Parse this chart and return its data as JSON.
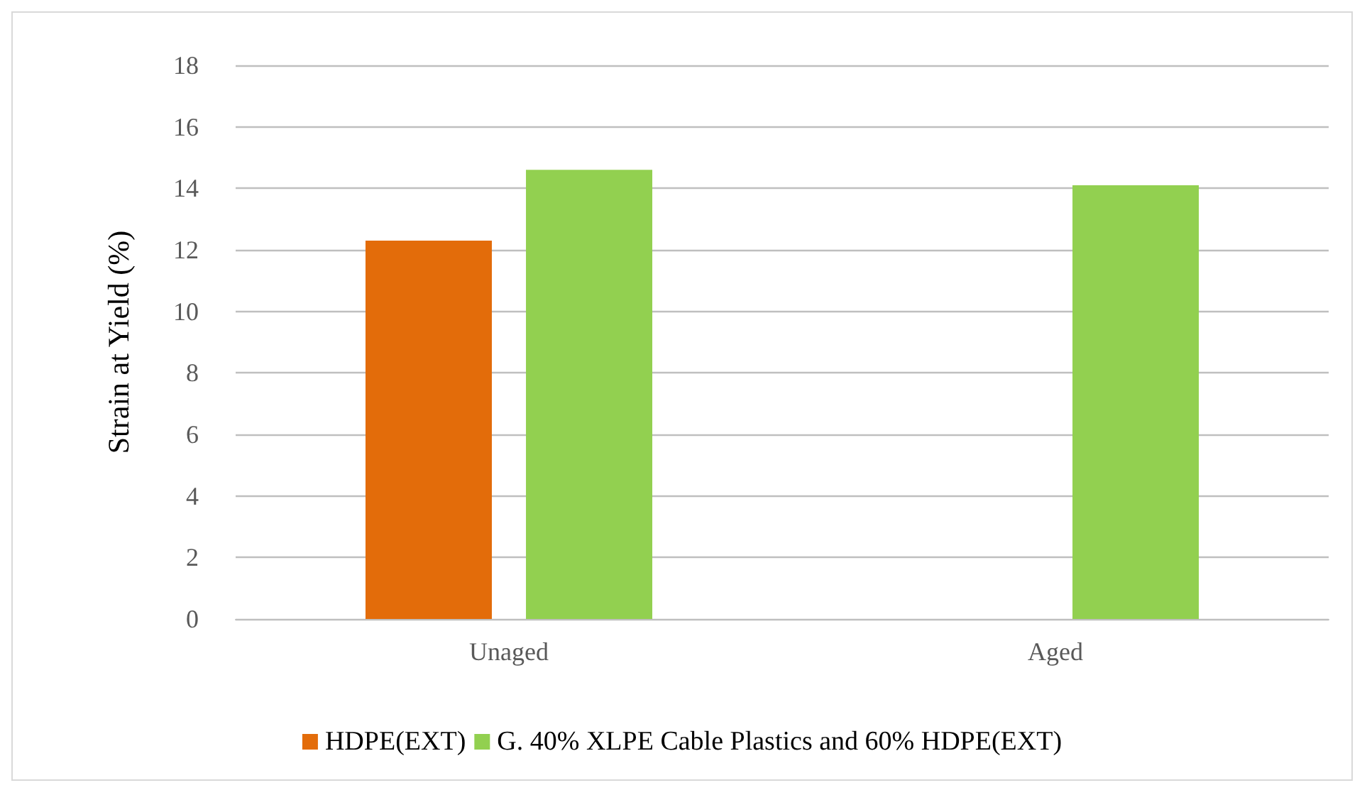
{
  "chart_data": {
    "type": "bar",
    "ylabel": "Strain at Yield (%)",
    "categories": [
      "Unaged",
      "Aged"
    ],
    "series": [
      {
        "name": "HDPE(EXT)",
        "color": "#e36c0a",
        "values": [
          12.3,
          null
        ]
      },
      {
        "name": "G. 40% XLPE Cable Plastics and 60% HDPE(EXT)",
        "color": "#92d050",
        "values": [
          14.6,
          14.1
        ]
      }
    ],
    "ylim": [
      0,
      18
    ],
    "yticks": [
      0,
      2,
      4,
      6,
      8,
      10,
      12,
      14,
      16,
      18
    ],
    "grid": "y",
    "legend": "bottom"
  }
}
